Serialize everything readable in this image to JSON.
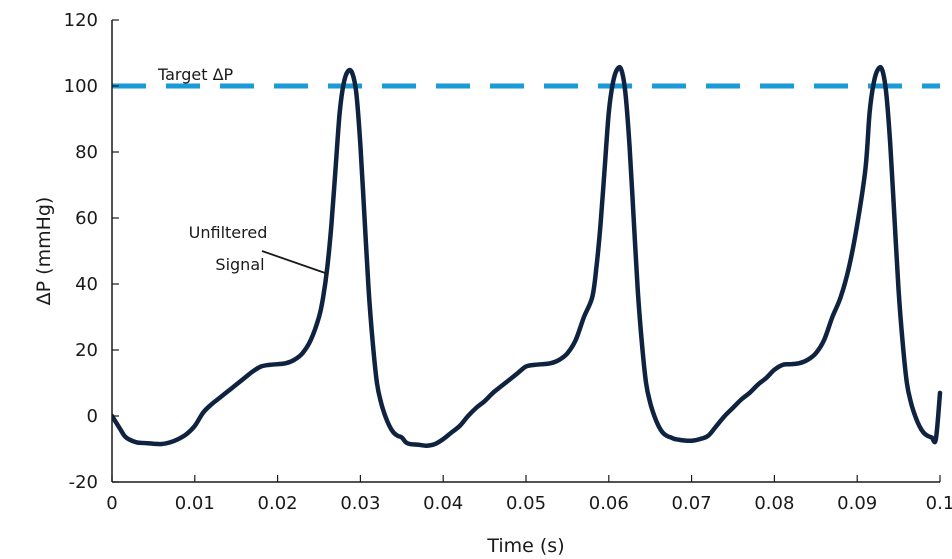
{
  "chart_data": {
    "type": "line",
    "title": "",
    "xlabel": "Time (s)",
    "ylabel": "ΔP (mmHg)",
    "xlim": [
      0,
      0.1
    ],
    "ylim": [
      -20,
      120
    ],
    "grid": false,
    "x_ticks": [
      0,
      0.01,
      0.02,
      0.03,
      0.04,
      0.05,
      0.06,
      0.07,
      0.08,
      0.09,
      0.1
    ],
    "x_tick_labels": [
      "0",
      "0.01",
      "0.02",
      "0.03",
      "0.04",
      "0.05",
      "0.06",
      "0.07",
      "0.08",
      "0.09",
      "0.1"
    ],
    "y_ticks": [
      -20,
      0,
      20,
      40,
      60,
      80,
      100,
      120
    ],
    "y_tick_labels": [
      "-20",
      "0",
      "20",
      "40",
      "60",
      "80",
      "100",
      "120"
    ],
    "colors": {
      "signal": "#0f2340",
      "target": "#1a9ad6",
      "axis": "#1a1a1a"
    },
    "series": [
      {
        "x": [
          0,
          0.0005,
          0.001,
          0.0015,
          0.002,
          0.003,
          0.004,
          0.005,
          0.006,
          0.007,
          0.008,
          0.009,
          0.01,
          0.011,
          0.012,
          0.013,
          0.014,
          0.015,
          0.016,
          0.017,
          0.018,
          0.019,
          0.02,
          0.021,
          0.022,
          0.023,
          0.024,
          0.025,
          0.0255,
          0.026,
          0.0265,
          0.027,
          0.0275,
          0.028,
          0.0285,
          0.029,
          0.0295,
          0.03,
          0.0305,
          0.031,
          0.0315,
          0.032,
          0.0325,
          0.033,
          0.0335,
          0.034,
          0.0345,
          0.035,
          0.0355,
          0.036,
          0.037,
          0.038,
          0.039,
          0.04,
          0.041,
          0.042,
          0.043,
          0.044,
          0.045,
          0.046,
          0.047,
          0.048,
          0.049,
          0.05,
          0.051,
          0.052,
          0.053,
          0.054,
          0.055,
          0.056,
          0.057,
          0.058,
          0.0585,
          0.059,
          0.0595,
          0.06,
          0.0605,
          0.061,
          0.0615,
          0.062,
          0.0625,
          0.063,
          0.0635,
          0.064,
          0.0645,
          0.065,
          0.0655,
          0.066,
          0.0665,
          0.067,
          0.0675,
          0.068,
          0.0685,
          0.069,
          0.07,
          0.071,
          0.072,
          0.073,
          0.074,
          0.075,
          0.076,
          0.077,
          0.078,
          0.079,
          0.08,
          0.081,
          0.082,
          0.083,
          0.084,
          0.085,
          0.086,
          0.087,
          0.088,
          0.089,
          0.09,
          0.091,
          0.0915,
          0.092,
          0.0925,
          0.093,
          0.0935,
          0.094,
          0.0945,
          0.095,
          0.0955,
          0.096,
          0.0965,
          0.097,
          0.0975,
          0.098,
          0.0985,
          0.099,
          0.0995,
          0.1
        ],
        "y": [
          0,
          -2,
          -4,
          -6,
          -7,
          -8,
          -8.2,
          -8.4,
          -8.5,
          -8,
          -7,
          -5.5,
          -3,
          1,
          3.5,
          5.5,
          7.5,
          9.5,
          11.5,
          13.5,
          15,
          15.5,
          15.7,
          16,
          17,
          19,
          23,
          30,
          36,
          45,
          58,
          75,
          92,
          101,
          104.5,
          104,
          98,
          82,
          60,
          38,
          22,
          10,
          4,
          0,
          -3,
          -5,
          -6,
          -6.5,
          -8,
          -8.5,
          -8.7,
          -9,
          -8.5,
          -7,
          -5,
          -3,
          0,
          2.5,
          4.5,
          7,
          9,
          11,
          13,
          15,
          15.5,
          15.7,
          16,
          17,
          19,
          23,
          30,
          36,
          45,
          58,
          75,
          92,
          101,
          105,
          105,
          98,
          82,
          60,
          38,
          22,
          10,
          4,
          0,
          -3,
          -5,
          -6,
          -6.5,
          -7,
          -7.2,
          -7.4,
          -7.5,
          -7,
          -6,
          -3,
          0,
          2.5,
          5,
          7,
          9.5,
          11.5,
          14,
          15.5,
          15.7,
          16,
          17,
          19,
          23,
          30,
          36,
          45,
          58,
          75,
          92,
          101,
          105,
          105,
          98,
          82,
          60,
          38,
          22,
          10,
          4,
          0,
          -3,
          -5,
          -6,
          -6.5,
          -7,
          7
        ]
      },
      {
        "x": [
          0,
          0.1
        ],
        "y": [
          100,
          100
        ]
      }
    ],
    "annotations": [
      {
        "text": "Target ΔP"
      },
      {
        "text": "Unfiltered"
      },
      {
        "text": "Signal"
      }
    ]
  }
}
